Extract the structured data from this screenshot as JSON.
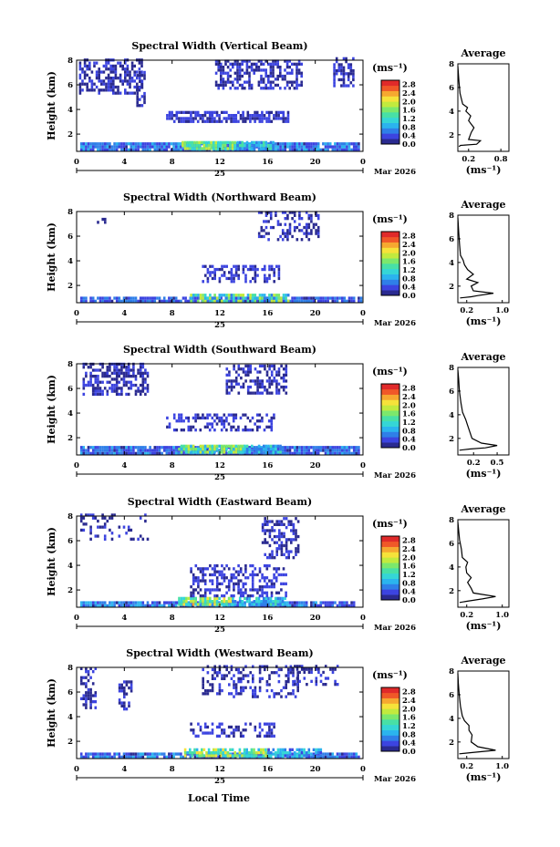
{
  "colors": {
    "scale": [
      "#2a2a90",
      "#3c44e0",
      "#2f7fe8",
      "#2bb4ee",
      "#35d6d6",
      "#48e0a6",
      "#7ce86c",
      "#c2ea3e",
      "#f6e23a",
      "#f6a830",
      "#f05828",
      "#e02a2a"
    ],
    "background": "#ffffff",
    "axis": "#000000"
  },
  "figure": {
    "xlabel": "Local Time",
    "date_label": "Mar 2026",
    "day_label": "25"
  },
  "panels": [
    {
      "title": "Spectral Width (Vertical Beam)",
      "avg_title": "Average",
      "avg_xticks": [
        "0.2",
        "0.8"
      ],
      "avg_profile": [
        [
          0.02,
          1.0
        ],
        [
          0.05,
          1.1
        ],
        [
          0.35,
          1.2
        ],
        [
          0.42,
          1.5
        ],
        [
          0.2,
          1.6
        ],
        [
          0.25,
          2.2
        ],
        [
          0.3,
          2.6
        ],
        [
          0.25,
          2.9
        ],
        [
          0.2,
          3.2
        ],
        [
          0.24,
          3.6
        ],
        [
          0.15,
          4.0
        ],
        [
          0.18,
          4.3
        ],
        [
          0.09,
          4.6
        ],
        [
          0.04,
          5.5
        ],
        [
          0.02,
          6.5
        ],
        [
          0.0,
          7.8
        ]
      ]
    },
    {
      "title": "Spectral Width (Northward Beam)",
      "avg_title": "Average",
      "avg_xticks": [
        "0.2",
        "1.0"
      ],
      "avg_profile": [
        [
          0.05,
          1.0
        ],
        [
          0.3,
          1.1
        ],
        [
          0.45,
          1.2
        ],
        [
          0.8,
          1.4
        ],
        [
          0.35,
          1.6
        ],
        [
          0.3,
          2.0
        ],
        [
          0.45,
          2.3
        ],
        [
          0.2,
          2.6
        ],
        [
          0.35,
          3.0
        ],
        [
          0.22,
          3.4
        ],
        [
          0.15,
          3.8
        ],
        [
          0.12,
          4.2
        ],
        [
          0.06,
          4.6
        ],
        [
          0.04,
          5.5
        ],
        [
          0.02,
          6.5
        ],
        [
          0.0,
          7.8
        ]
      ]
    },
    {
      "title": "Spectral Width (Southward Beam)",
      "avg_title": "Average",
      "avg_xticks": [
        "0.2",
        "0.5"
      ],
      "avg_profile": [
        [
          0.02,
          1.0
        ],
        [
          0.15,
          1.1
        ],
        [
          0.35,
          1.2
        ],
        [
          0.5,
          1.4
        ],
        [
          0.3,
          1.6
        ],
        [
          0.18,
          2.0
        ],
        [
          0.15,
          2.6
        ],
        [
          0.12,
          3.2
        ],
        [
          0.1,
          3.6
        ],
        [
          0.06,
          4.2
        ],
        [
          0.04,
          5.0
        ],
        [
          0.02,
          6.0
        ],
        [
          0.01,
          7.0
        ],
        [
          0.0,
          7.8
        ]
      ]
    },
    {
      "title": "Spectral Width (Eastward Beam)",
      "avg_title": "Average",
      "avg_xticks": [
        "0.2",
        "1.0"
      ],
      "avg_profile": [
        [
          0.04,
          1.0
        ],
        [
          0.2,
          1.1
        ],
        [
          0.55,
          1.3
        ],
        [
          0.85,
          1.5
        ],
        [
          0.35,
          1.8
        ],
        [
          0.3,
          2.2
        ],
        [
          0.22,
          2.7
        ],
        [
          0.3,
          3.1
        ],
        [
          0.2,
          3.5
        ],
        [
          0.18,
          4.0
        ],
        [
          0.22,
          4.4
        ],
        [
          0.1,
          4.8
        ],
        [
          0.08,
          5.5
        ],
        [
          0.04,
          6.3
        ],
        [
          0.02,
          7.0
        ],
        [
          0.0,
          7.8
        ]
      ]
    },
    {
      "title": "Spectral Width (Westward Beam)",
      "avg_title": "Average",
      "avg_xticks": [
        "0.2",
        "1.0"
      ],
      "avg_profile": [
        [
          0.03,
          1.0
        ],
        [
          0.3,
          1.1
        ],
        [
          0.85,
          1.3
        ],
        [
          0.45,
          1.6
        ],
        [
          0.3,
          2.0
        ],
        [
          0.32,
          2.6
        ],
        [
          0.25,
          3.0
        ],
        [
          0.25,
          3.4
        ],
        [
          0.15,
          3.8
        ],
        [
          0.1,
          4.2
        ],
        [
          0.06,
          5.0
        ],
        [
          0.03,
          6.0
        ],
        [
          0.01,
          7.0
        ],
        [
          0.0,
          7.8
        ]
      ]
    }
  ],
  "chart_data": {
    "type": "heatmap",
    "ylabel": "Height (km)",
    "xlabel": "Local Time",
    "colorbar_unit": "(ms⁻¹)",
    "xticks": [
      "0",
      "4",
      "8",
      "12",
      "16",
      "20",
      "0"
    ],
    "yticks": [
      "2",
      "4",
      "6",
      "8"
    ],
    "colorbar_ticks": [
      "0.0",
      "0.4",
      "0.8",
      "1.2",
      "1.6",
      "2.0",
      "2.4",
      "2.8"
    ],
    "xlim": [
      0,
      24
    ],
    "ylim": [
      0.6,
      8.0
    ],
    "clim": [
      0.0,
      3.0
    ],
    "avg_ylim": [
      0.6,
      8.0
    ],
    "avg_yticks": [
      "2",
      "4",
      "6",
      "8"
    ],
    "avg_xlabel": "(ms⁻¹)",
    "regions": [
      [
        {
          "t0": 0.3,
          "t1": 23.7,
          "h0": 0.6,
          "h1": 1.1,
          "v": [
            0.2,
            0.9
          ],
          "d": 0.95
        },
        {
          "t0": 8.8,
          "t1": 13.2,
          "h0": 0.7,
          "h1": 1.2,
          "v": [
            1.0,
            2.0
          ],
          "d": 0.9
        },
        {
          "t0": 13.2,
          "t1": 16.5,
          "h0": 0.7,
          "h1": 1.3,
          "v": [
            0.5,
            1.4
          ],
          "d": 0.8
        },
        {
          "t0": 7.5,
          "t1": 17.8,
          "h0": 2.9,
          "h1": 3.7,
          "v": [
            0.15,
            0.45
          ],
          "d": 0.7
        },
        {
          "t0": 0.2,
          "t1": 5.5,
          "h0": 5.2,
          "h1": 8.0,
          "v": [
            0.1,
            0.35
          ],
          "d": 0.55
        },
        {
          "t0": 5.0,
          "t1": 5.7,
          "h0": 4.2,
          "h1": 7.0,
          "v": [
            0.1,
            0.35
          ],
          "d": 0.6
        },
        {
          "t0": 11.6,
          "t1": 18.8,
          "h0": 5.6,
          "h1": 8.0,
          "v": [
            0.1,
            0.35
          ],
          "d": 0.55
        },
        {
          "t0": 21.5,
          "t1": 23.2,
          "h0": 5.8,
          "h1": 8.0,
          "v": [
            0.1,
            0.35
          ],
          "d": 0.6
        }
      ],
      [
        {
          "t0": 0.3,
          "t1": 23.8,
          "h0": 0.6,
          "h1": 1.0,
          "v": [
            0.2,
            0.7
          ],
          "d": 0.9
        },
        {
          "t0": 9.5,
          "t1": 17.8,
          "h0": 0.6,
          "h1": 1.2,
          "v": [
            0.6,
            2.0
          ],
          "d": 0.75
        },
        {
          "t0": 10.5,
          "t1": 17.0,
          "h0": 2.2,
          "h1": 3.5,
          "v": [
            0.15,
            0.45
          ],
          "d": 0.5
        },
        {
          "t0": 15.2,
          "t1": 20.2,
          "h0": 5.6,
          "h1": 8.0,
          "v": [
            0.1,
            0.35
          ],
          "d": 0.35
        },
        {
          "t0": 1.5,
          "t1": 2.3,
          "h0": 7.0,
          "h1": 7.4,
          "v": [
            0.1,
            0.3
          ],
          "d": 0.6
        }
      ],
      [
        {
          "t0": 0.3,
          "t1": 23.7,
          "h0": 0.6,
          "h1": 1.1,
          "v": [
            0.2,
            0.8
          ],
          "d": 0.95
        },
        {
          "t0": 8.5,
          "t1": 14.0,
          "h0": 0.7,
          "h1": 1.2,
          "v": [
            0.8,
            2.0
          ],
          "d": 0.9
        },
        {
          "t0": 14.0,
          "t1": 17.0,
          "h0": 0.7,
          "h1": 1.3,
          "v": [
            0.5,
            1.3
          ],
          "d": 0.85
        },
        {
          "t0": 7.5,
          "t1": 16.5,
          "h0": 2.5,
          "h1": 3.8,
          "v": [
            0.15,
            0.4
          ],
          "d": 0.45
        },
        {
          "t0": 0.5,
          "t1": 6.0,
          "h0": 5.4,
          "h1": 8.0,
          "v": [
            0.1,
            0.35
          ],
          "d": 0.55
        },
        {
          "t0": 12.5,
          "t1": 17.5,
          "h0": 5.5,
          "h1": 7.8,
          "v": [
            0.1,
            0.35
          ],
          "d": 0.5
        }
      ],
      [
        {
          "t0": 0.3,
          "t1": 23.2,
          "h0": 0.6,
          "h1": 1.0,
          "v": [
            0.2,
            0.9
          ],
          "d": 0.9
        },
        {
          "t0": 8.5,
          "t1": 13.0,
          "h0": 0.7,
          "h1": 1.4,
          "v": [
            1.0,
            2.3
          ],
          "d": 0.8
        },
        {
          "t0": 13.0,
          "t1": 17.5,
          "h0": 0.7,
          "h1": 1.3,
          "v": [
            0.5,
            1.4
          ],
          "d": 0.8
        },
        {
          "t0": 9.5,
          "t1": 17.5,
          "h0": 1.4,
          "h1": 4.0,
          "v": [
            0.15,
            0.45
          ],
          "d": 0.45
        },
        {
          "t0": 15.5,
          "t1": 18.5,
          "h0": 4.5,
          "h1": 7.8,
          "v": [
            0.1,
            0.35
          ],
          "d": 0.5
        },
        {
          "t0": 0.3,
          "t1": 6.0,
          "h0": 6.0,
          "h1": 8.0,
          "v": [
            0.1,
            0.35
          ],
          "d": 0.2
        }
      ],
      [
        {
          "t0": 0.3,
          "t1": 23.7,
          "h0": 0.6,
          "h1": 1.0,
          "v": [
            0.2,
            0.9
          ],
          "d": 0.9
        },
        {
          "t0": 9.0,
          "t1": 16.0,
          "h0": 0.7,
          "h1": 1.3,
          "v": [
            0.8,
            2.2
          ],
          "d": 0.8
        },
        {
          "t0": 16.0,
          "t1": 20.5,
          "h0": 0.7,
          "h1": 1.2,
          "v": [
            0.4,
            1.2
          ],
          "d": 0.75
        },
        {
          "t0": 9.5,
          "t1": 16.5,
          "h0": 2.3,
          "h1": 3.3,
          "v": [
            0.15,
            0.45
          ],
          "d": 0.45
        },
        {
          "t0": 0.3,
          "t1": 1.5,
          "h0": 4.6,
          "h1": 7.8,
          "v": [
            0.1,
            0.35
          ],
          "d": 0.5
        },
        {
          "t0": 3.5,
          "t1": 4.5,
          "h0": 4.5,
          "h1": 6.8,
          "v": [
            0.1,
            0.35
          ],
          "d": 0.55
        },
        {
          "t0": 10.5,
          "t1": 18.5,
          "h0": 5.5,
          "h1": 8.0,
          "v": [
            0.1,
            0.35
          ],
          "d": 0.35
        },
        {
          "t0": 18.0,
          "t1": 22.0,
          "h0": 6.5,
          "h1": 8.0,
          "v": [
            0.1,
            0.35
          ],
          "d": 0.25
        }
      ]
    ]
  }
}
